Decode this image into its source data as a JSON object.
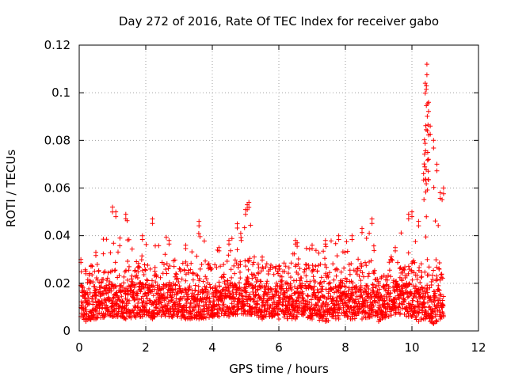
{
  "chart_data": {
    "type": "scatter",
    "title": "Day 272 of 2016, Rate Of TEC Index for receiver gabo",
    "xlabel": "GPS time / hours",
    "ylabel": "ROTI / TECUs",
    "xlim": [
      0,
      12
    ],
    "ylim": [
      0,
      0.12
    ],
    "x_ticks": [
      "0",
      "2",
      "4",
      "6",
      "8",
      "10",
      "12"
    ],
    "y_ticks": [
      "0",
      "0.02",
      "0.04",
      "0.06",
      "0.08",
      "0.1",
      "0.12"
    ],
    "grid": true,
    "marker": "+",
    "marker_color": "#ff0000",
    "series": [
      {
        "name": "ROTI",
        "x": [
          0.05,
          0.2,
          0.5,
          1.0,
          1.1,
          1.4,
          1.9,
          2.2,
          2.7,
          3.2,
          3.6,
          4.2,
          4.5,
          4.75,
          5.0,
          5.05,
          5.1,
          5.5,
          6.0,
          6.5,
          6.55,
          7.0,
          7.4,
          7.8,
          8.2,
          8.5,
          8.8,
          9.0,
          9.5,
          9.9,
          10.0,
          10.2,
          10.35,
          10.4,
          10.45,
          10.5,
          10.55,
          10.65,
          10.75,
          10.85,
          10.95
        ],
        "y": [
          0.03,
          0.025,
          0.033,
          0.052,
          0.05,
          0.049,
          0.04,
          0.047,
          0.038,
          0.036,
          0.046,
          0.035,
          0.038,
          0.045,
          0.051,
          0.053,
          0.054,
          0.031,
          0.027,
          0.038,
          0.037,
          0.036,
          0.038,
          0.04,
          0.04,
          0.043,
          0.047,
          0.02,
          0.035,
          0.049,
          0.05,
          0.046,
          0.066,
          0.104,
          0.112,
          0.096,
          0.086,
          0.08,
          0.07,
          0.058,
          0.06
        ],
        "y_min": [
          0.006,
          0.004,
          0.005,
          0.006,
          0.006,
          0.005,
          0.006,
          0.005,
          0.006,
          0.005,
          0.005,
          0.006,
          0.006,
          0.007,
          0.007,
          0.007,
          0.007,
          0.005,
          0.005,
          0.005,
          0.006,
          0.005,
          0.004,
          0.005,
          0.005,
          0.005,
          0.006,
          0.004,
          0.007,
          0.006,
          0.006,
          0.004,
          0.005,
          0.005,
          0.006,
          0.006,
          0.004,
          0.003,
          0.004,
          0.005,
          0.006
        ]
      }
    ]
  }
}
